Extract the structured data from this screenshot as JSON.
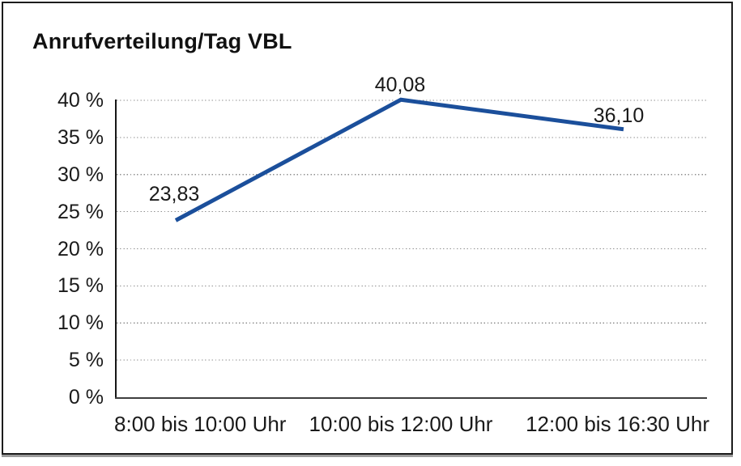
{
  "chart_data": {
    "type": "line",
    "title": "Anrufverteilung/Tag VBL",
    "categories": [
      "8:00 bis 10:00 Uhr",
      "10:00 bis 12:00 Uhr",
      "12:00 bis 16:30 Uhr"
    ],
    "series": [
      {
        "name": "Anrufverteilung/Tag VBL",
        "values": [
          23.83,
          40.08,
          36.1
        ]
      }
    ],
    "point_labels": [
      "23,83",
      "40,08",
      "36,10"
    ],
    "xlabel": "",
    "ylabel": "",
    "ylim": [
      0,
      40
    ],
    "y_tick_step": 5,
    "y_tick_labels": [
      "0 %",
      "5 %",
      "10 %",
      "15 %",
      "20 %",
      "25 %",
      "30 %",
      "35 %",
      "40 %"
    ],
    "grid": "horizontal-dotted",
    "legend": "none",
    "line_color": "#1b4f9b",
    "grid_color": "#909090",
    "axis_color": "#1a1a1a",
    "background": "#ffffff",
    "border_color": "#1c1c1c"
  }
}
